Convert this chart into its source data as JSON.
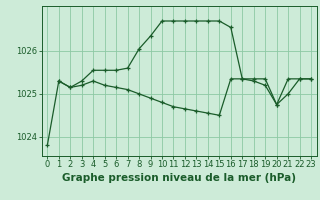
{
  "title": "Graphe pression niveau de la mer (hPa)",
  "background_color": "#cdebd8",
  "grid_color": "#8dc9a4",
  "line_color": "#1a5c2a",
  "x_labels": [
    "0",
    "1",
    "2",
    "3",
    "4",
    "5",
    "6",
    "7",
    "8",
    "9",
    "10",
    "11",
    "12",
    "13",
    "14",
    "15",
    "16",
    "17",
    "18",
    "19",
    "20",
    "21",
    "22",
    "23"
  ],
  "series1_x": [
    0,
    1,
    2,
    3,
    4,
    5,
    6,
    7,
    8,
    9,
    10,
    11,
    12,
    13,
    14,
    15,
    16,
    17,
    18,
    19,
    20,
    21,
    22,
    23
  ],
  "series1_y": [
    1023.8,
    1025.3,
    1025.15,
    1025.3,
    1025.55,
    1025.55,
    1025.55,
    1025.6,
    1026.05,
    1026.35,
    1026.7,
    1026.7,
    1026.7,
    1026.7,
    1026.7,
    1026.7,
    1026.55,
    1025.35,
    1025.35,
    1025.35,
    1024.75,
    1025.35,
    1025.35,
    1025.35
  ],
  "series2_x": [
    1,
    2,
    3,
    4,
    5,
    6,
    7,
    8,
    9,
    10,
    11,
    12,
    13,
    14,
    15,
    16,
    17,
    18,
    19,
    20,
    21,
    22,
    23
  ],
  "series2_y": [
    1025.3,
    1025.15,
    1025.2,
    1025.3,
    1025.2,
    1025.15,
    1025.1,
    1025.0,
    1024.9,
    1024.8,
    1024.7,
    1024.65,
    1024.6,
    1024.55,
    1024.5,
    1025.35,
    1025.35,
    1025.3,
    1025.2,
    1024.75,
    1025.0,
    1025.35,
    1025.35
  ],
  "ylim_min": 1023.55,
  "ylim_max": 1027.05,
  "yticks": [
    1024,
    1025,
    1026
  ],
  "title_fontsize": 7.5,
  "tick_fontsize": 6
}
